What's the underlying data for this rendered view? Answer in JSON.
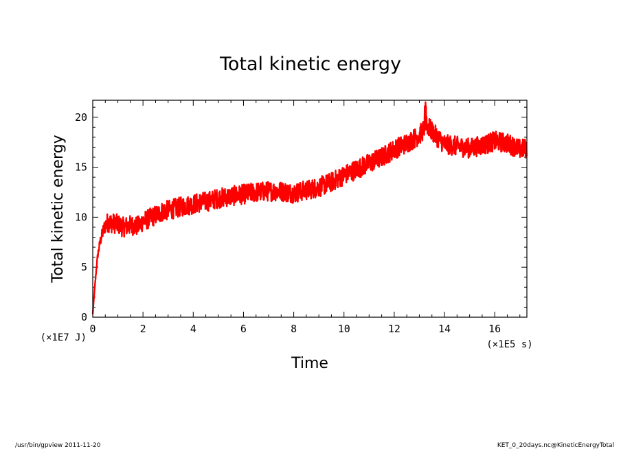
{
  "chart_data": {
    "type": "line",
    "title": "Total kinetic energy",
    "xlabel": "Time",
    "ylabel": "Total kinetic energy",
    "x_unit": "(×1E5 s)",
    "y_unit": "(×1E7 J)",
    "xlim": [
      0,
      17.28
    ],
    "ylim": [
      0,
      21.7
    ],
    "xticks": [
      0,
      2,
      4,
      6,
      8,
      10,
      12,
      14,
      16
    ],
    "yticks": [
      0,
      5,
      10,
      15,
      20
    ],
    "grid": false,
    "series": [
      {
        "color": "#ff0000",
        "x": [
          0,
          0.05,
          0.1,
          0.15,
          0.2,
          0.3,
          0.4,
          0.5,
          0.6,
          0.8,
          1.0,
          1.2,
          1.5,
          1.8,
          2.0,
          2.2,
          2.5,
          2.8,
          3.0,
          3.3,
          3.6,
          4.0,
          4.3,
          4.6,
          5.0,
          5.5,
          6.0,
          6.5,
          7.0,
          7.5,
          8.0,
          8.5,
          9.0,
          9.5,
          10.0,
          10.5,
          11.0,
          11.5,
          12.0,
          12.5,
          13.0,
          13.3,
          13.6,
          14.0,
          14.5,
          15.0,
          15.5,
          16.0,
          16.5,
          17.0,
          17.28
        ],
        "y": [
          0.3,
          2.0,
          3.5,
          5.0,
          6.2,
          7.6,
          8.5,
          9.2,
          9.5,
          9.4,
          9.3,
          9.0,
          9.2,
          9.1,
          9.6,
          9.8,
          10.2,
          10.6,
          10.7,
          10.9,
          11.1,
          11.3,
          11.5,
          11.6,
          11.9,
          12.1,
          12.3,
          12.5,
          12.6,
          12.6,
          12.4,
          12.7,
          13.0,
          13.5,
          14.2,
          14.8,
          15.4,
          16.0,
          16.8,
          17.4,
          18.2,
          19.2,
          18.3,
          17.3,
          17.1,
          16.9,
          17.2,
          17.6,
          17.4,
          16.8,
          16.9
        ],
        "noise_amplitude": 1.0
      }
    ]
  },
  "footer": {
    "left": "/usr/bin/gpview   2011-11-20",
    "right": "KET_0_20days.nc@KineticEnergyTotal"
  }
}
